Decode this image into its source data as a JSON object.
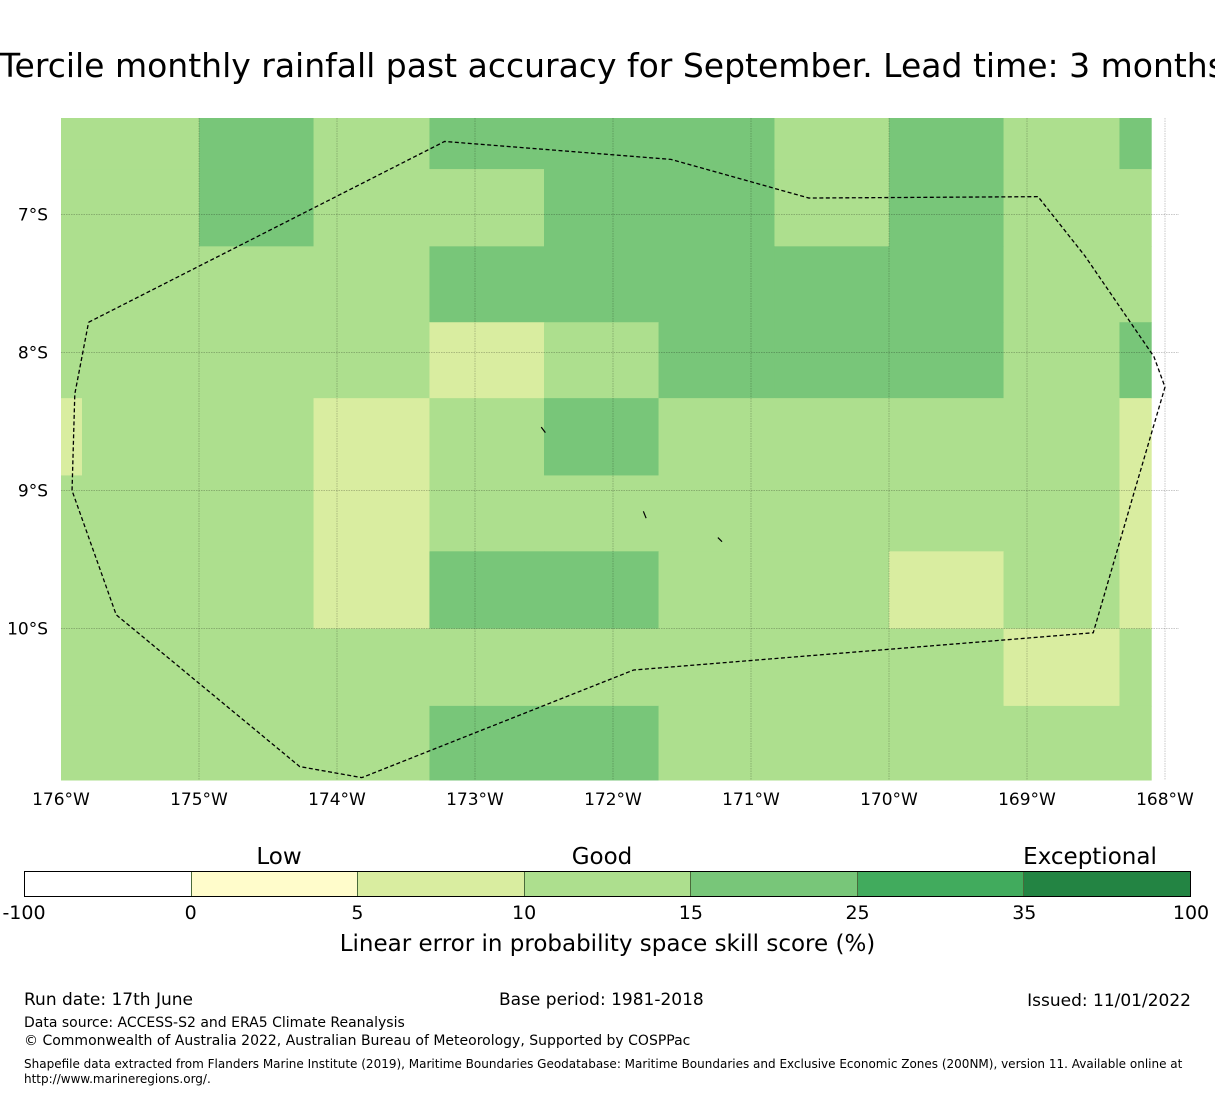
{
  "title": "Tercile monthly rainfall past accuracy for September. Lead time: 3 months",
  "map": {
    "lon_ticks": [
      "176°W",
      "175°W",
      "174°W",
      "173°W",
      "172°W",
      "171°W",
      "170°W",
      "169°W",
      "168°W"
    ],
    "lat_ticks": [
      "7°S",
      "8°S",
      "9°S",
      "10°S"
    ],
    "lon_range": [
      -176,
      -168
    ],
    "lat_range": [
      -6.3,
      -11.1
    ],
    "grid": true,
    "grid_cells": {
      "col_lon_edges": [
        -176,
        -175,
        -174.17,
        -173.33,
        -172.5,
        -171.67,
        -170.83,
        -170,
        -169.17,
        -168.33,
        -168.1
      ],
      "row_lat_edges": [
        -6.3,
        -6.67,
        -7.23,
        -7.78,
        -8.33,
        -8.89,
        -9.44,
        -10,
        -10.56,
        -11.1
      ],
      "skill_class": [
        [
          3,
          4,
          3,
          4,
          4,
          4,
          3,
          4,
          3,
          4
        ],
        [
          3,
          4,
          3,
          3,
          4,
          4,
          3,
          4,
          3,
          3
        ],
        [
          3,
          3,
          3,
          4,
          4,
          4,
          4,
          4,
          3,
          3
        ],
        [
          3,
          3,
          3,
          2,
          3,
          4,
          4,
          4,
          3,
          4
        ],
        [
          3,
          3,
          2,
          3,
          4,
          3,
          3,
          3,
          3,
          2
        ],
        [
          3,
          3,
          2,
          3,
          3,
          3,
          3,
          3,
          3,
          2
        ],
        [
          3,
          3,
          2,
          4,
          4,
          3,
          3,
          2,
          3,
          2
        ],
        [
          3,
          3,
          3,
          3,
          3,
          3,
          3,
          3,
          2,
          3
        ],
        [
          3,
          3,
          3,
          4,
          4,
          3,
          3,
          3,
          3,
          3
        ]
      ],
      "west_edge_strip": {
        "lat": [
          -8.33,
          -8.89
        ],
        "skill_class": 2
      }
    },
    "eez_boundary_lonlat": [
      [
        -175.8,
        -7.78
      ],
      [
        -173.22,
        -6.47
      ],
      [
        -171.58,
        -6.6
      ],
      [
        -170.58,
        -6.88
      ],
      [
        -168.92,
        -6.87
      ],
      [
        -168.58,
        -7.3
      ],
      [
        -168.08,
        -8.03
      ],
      [
        -168.0,
        -8.25
      ],
      [
        -168.22,
        -9.0
      ],
      [
        -168.52,
        -10.03
      ],
      [
        -171.85,
        -10.3
      ],
      [
        -173.82,
        -11.08
      ],
      [
        -174.27,
        -11.0
      ],
      [
        -175.6,
        -9.9
      ],
      [
        -175.92,
        -9.0
      ],
      [
        -175.9,
        -8.3
      ],
      [
        -175.8,
        -7.78
      ]
    ],
    "islands_lonlat": [
      [
        [
          -172.52,
          -8.54
        ],
        [
          -172.49,
          -8.58
        ]
      ],
      [
        [
          -171.78,
          -9.15
        ],
        [
          -171.76,
          -9.2
        ]
      ],
      [
        [
          -171.24,
          -9.34
        ],
        [
          -171.21,
          -9.37
        ]
      ]
    ]
  },
  "colorbar": {
    "category_labels": [
      "Low",
      "Good",
      "Exceptional"
    ],
    "ticks": [
      "-100",
      "0",
      "5",
      "10",
      "15",
      "25",
      "35",
      "100"
    ],
    "colors": [
      "#ffffff",
      "#fffccb",
      "#d9eda0",
      "#addf8e",
      "#78c679",
      "#41ab5d",
      "#238443"
    ],
    "label": "Linear error in probability space skill score (%)"
  },
  "footer": {
    "run_date": "Run date: 17th June",
    "base_period": "Base period: 1981-2018",
    "issued": "Issued: 11/01/2022",
    "data_source": "Data source: ACCESS-S2 and ERA5 Climate Reanalysis",
    "copyright": "© Commonwealth of Australia 2022, Australian Bureau of Meteorology, Supported by COSPPac",
    "shapefile_note": "Shapefile data extracted from Flanders Marine Institute (2019), Maritime Boundaries Geodatabase: Maritime Boundaries and Exclusive Economic Zones (200NM), version 11. Available online at http://www.marineregions.org/."
  }
}
